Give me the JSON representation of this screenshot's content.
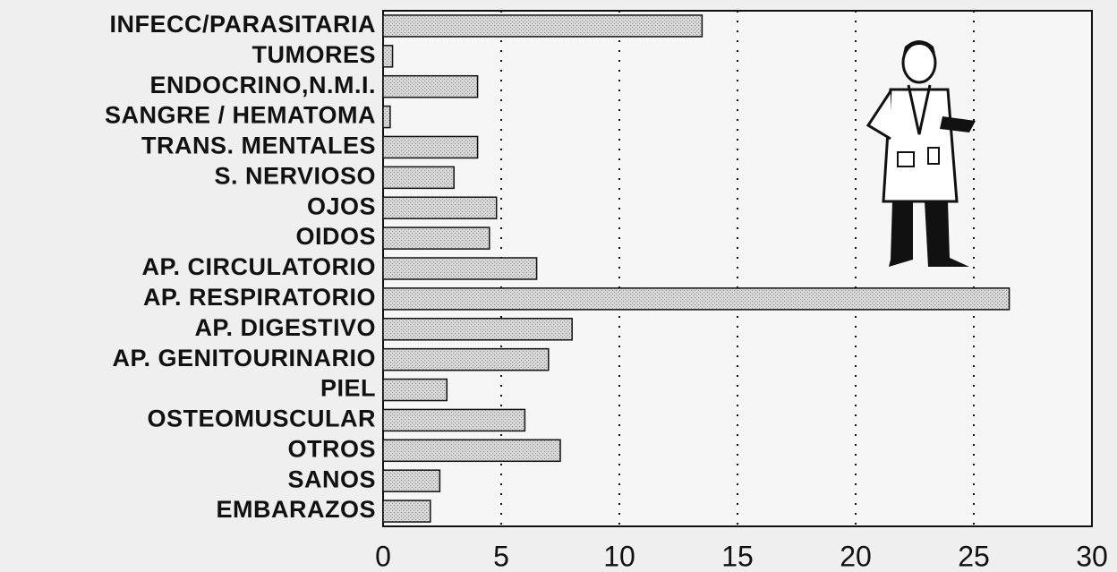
{
  "chart_data": {
    "type": "barh",
    "categories": [
      "INFECC/PARASITARIA",
      "TUMORES",
      "ENDOCRINO,N.M.I.",
      "SANGRE / HEMATOMA",
      "TRANS. MENTALES",
      "S. NERVIOSO",
      "OJOS",
      "OIDOS",
      "AP. CIRCULATORIO",
      "AP. RESPIRATORIO",
      "AP. DIGESTIVO",
      "AP. GENITOURINARIO",
      "PIEL",
      "OSTEOMUSCULAR",
      "OTROS",
      "SANOS",
      "EMBARAZOS"
    ],
    "values": [
      13.5,
      0.4,
      4.0,
      0.3,
      4.0,
      3.0,
      4.8,
      4.5,
      6.5,
      26.5,
      8.0,
      7.0,
      2.7,
      6.0,
      7.5,
      2.4,
      2.0
    ],
    "color": "#d4d4d4",
    "xlim": [
      0,
      30
    ],
    "xticks": [
      0,
      5,
      10,
      15,
      20,
      25,
      30
    ],
    "grid": true
  }
}
